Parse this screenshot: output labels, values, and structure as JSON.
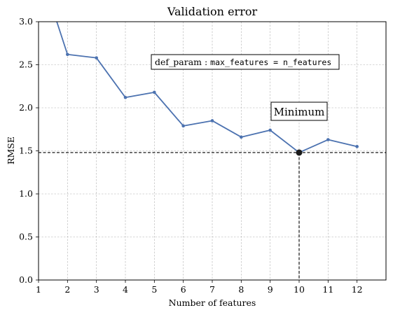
{
  "chart_data": {
    "type": "line",
    "title": "Validation error",
    "xlabel": "Number of features",
    "ylabel": "RMSE",
    "xlim": [
      1,
      13
    ],
    "ylim": [
      0,
      3.0
    ],
    "x_ticks": [
      1,
      2,
      3,
      4,
      5,
      6,
      7,
      8,
      9,
      10,
      11,
      12
    ],
    "y_ticks": [
      0.0,
      0.5,
      1.0,
      1.5,
      2.0,
      2.5,
      3.0
    ],
    "y_tick_labels": [
      "0.0",
      "0.5",
      "1.0",
      "1.5",
      "2.0",
      "2.5",
      "3.0"
    ],
    "grid": true,
    "series": [
      {
        "x": [
          1,
          2,
          3,
          4,
          5,
          6,
          7,
          8,
          9,
          10,
          11,
          12
        ],
        "values": [
          3.65,
          2.62,
          2.58,
          2.12,
          2.18,
          1.79,
          1.85,
          1.66,
          1.74,
          1.48,
          1.63,
          1.55
        ],
        "color": "#4c72b0"
      }
    ],
    "minimum": {
      "x": 10,
      "y": 1.48
    },
    "annotations": {
      "param_prefix": "def_param : ",
      "param_code": "max_features = n_features",
      "minimum_label": "Minimum"
    }
  }
}
